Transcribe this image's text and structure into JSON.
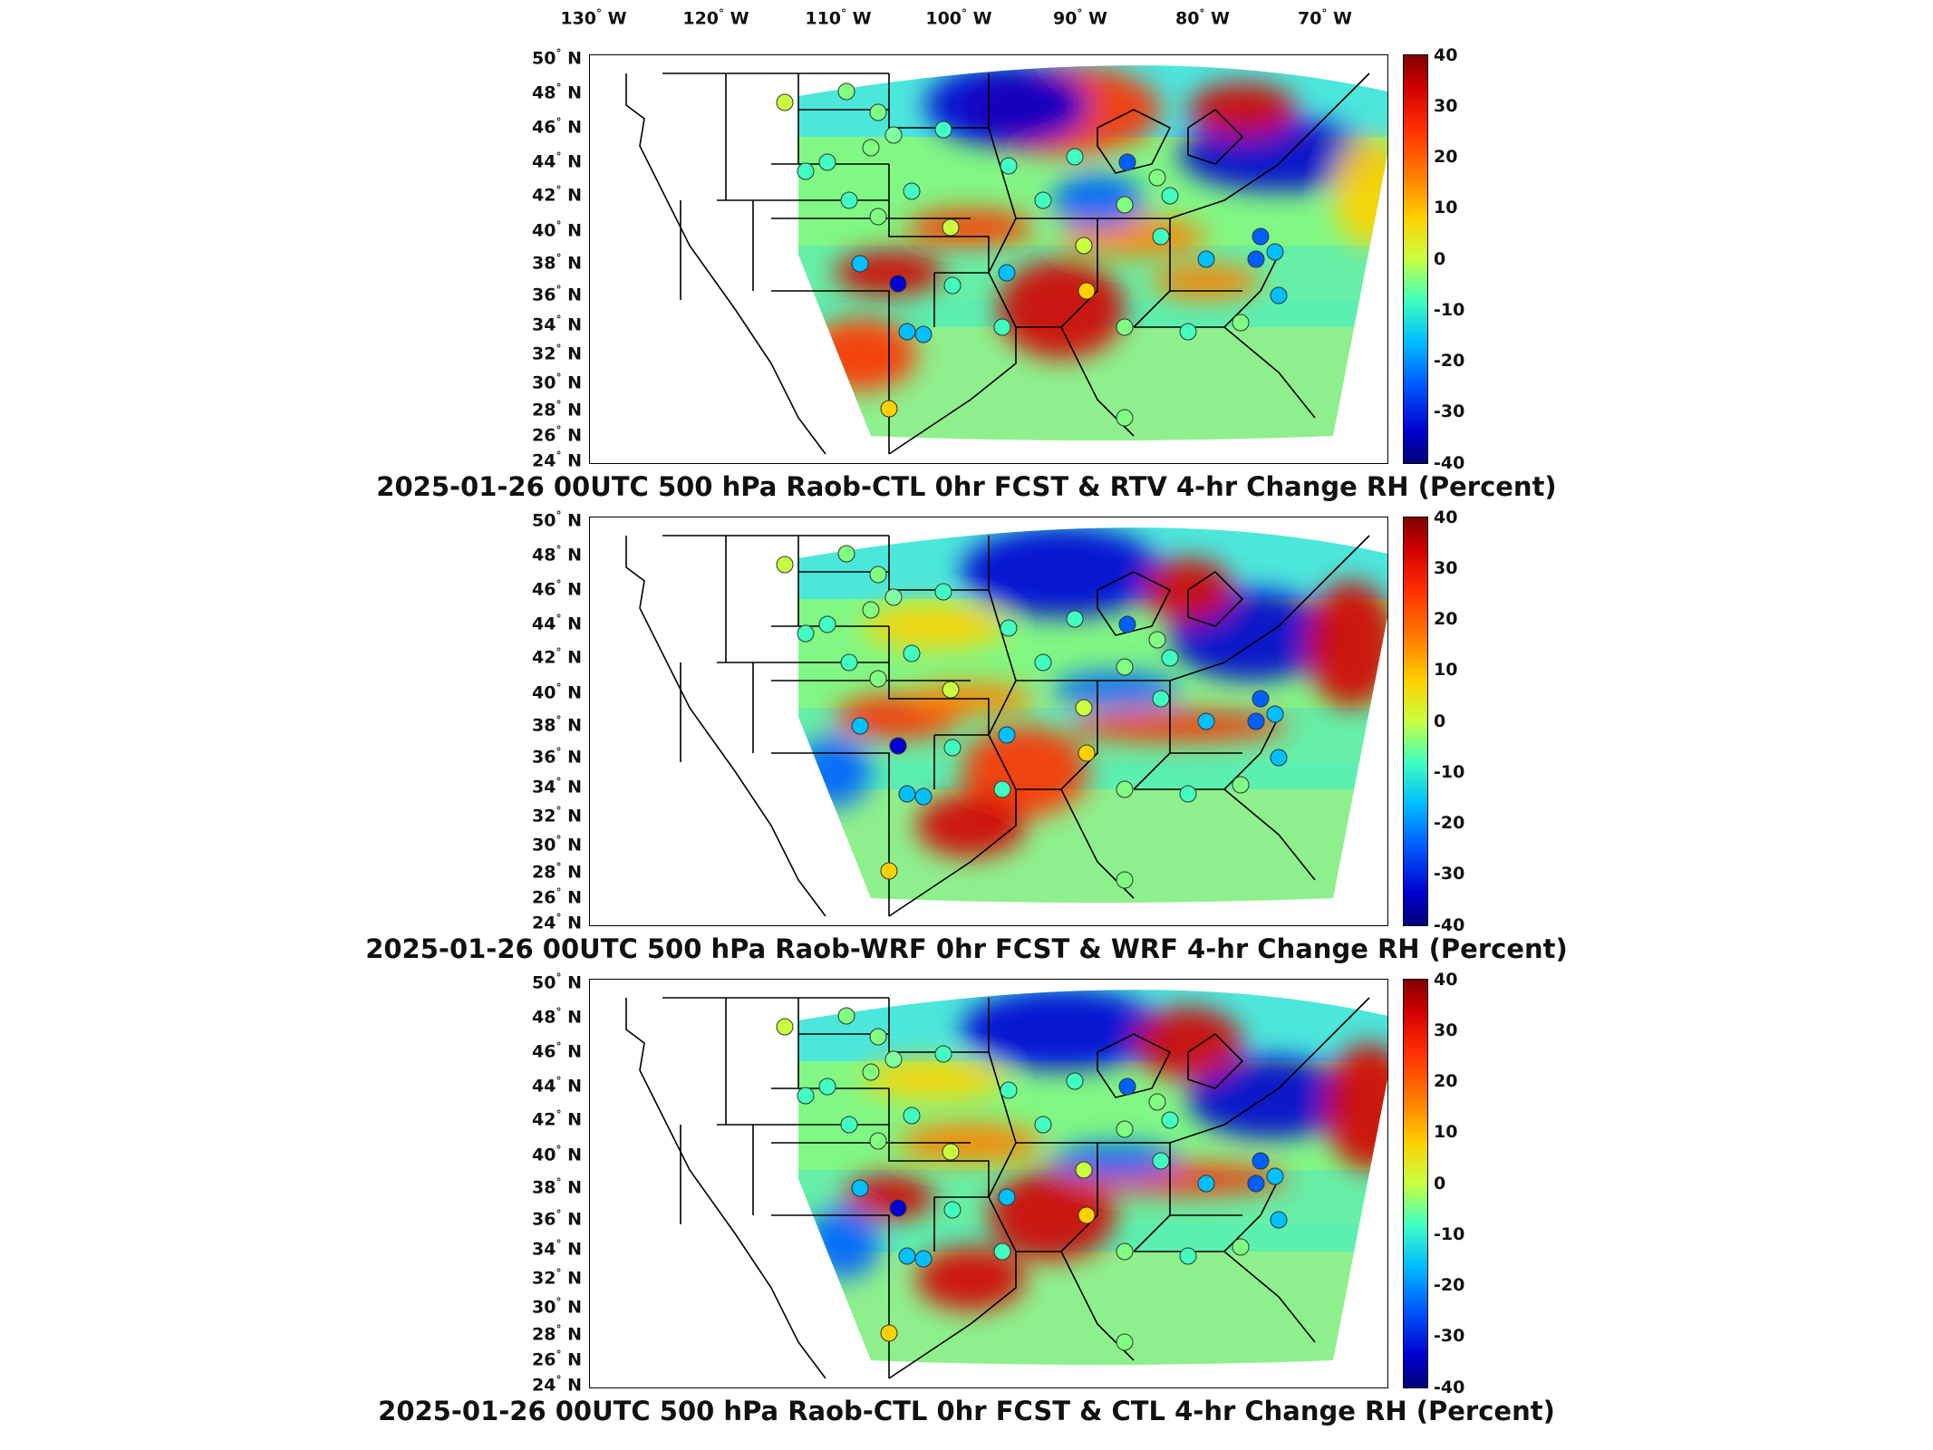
{
  "lon_labels": [
    {
      "deg": "130",
      "hemi": "W"
    },
    {
      "deg": "120",
      "hemi": "W"
    },
    {
      "deg": "110",
      "hemi": "W"
    },
    {
      "deg": "100",
      "hemi": "W"
    },
    {
      "deg": "90",
      "hemi": "W"
    },
    {
      "deg": "80",
      "hemi": "W"
    },
    {
      "deg": "70",
      "hemi": "W"
    }
  ],
  "lat_labels": [
    {
      "deg": "50",
      "hemi": "N"
    },
    {
      "deg": "48",
      "hemi": "N"
    },
    {
      "deg": "46",
      "hemi": "N"
    },
    {
      "deg": "44",
      "hemi": "N"
    },
    {
      "deg": "42",
      "hemi": "N"
    },
    {
      "deg": "40",
      "hemi": "N"
    },
    {
      "deg": "38",
      "hemi": "N"
    },
    {
      "deg": "36",
      "hemi": "N"
    },
    {
      "deg": "34",
      "hemi": "N"
    },
    {
      "deg": "32",
      "hemi": "N"
    },
    {
      "deg": "30",
      "hemi": "N"
    },
    {
      "deg": "28",
      "hemi": "N"
    },
    {
      "deg": "26",
      "hemi": "N"
    },
    {
      "deg": "24",
      "hemi": "N"
    }
  ],
  "colorbar": {
    "ticks": [
      "40",
      "30",
      "20",
      "10",
      "0",
      "-10",
      "-20",
      "-30",
      "-40"
    ],
    "colors": [
      "#800000",
      "#d40000",
      "#ff3000",
      "#ff8000",
      "#ffd000",
      "#c8ff40",
      "#40ffc0",
      "#00c0ff",
      "#0060ff",
      "#0000d0",
      "#00007a"
    ]
  },
  "panels": [
    {
      "title": "2025-01-26 00UTC 500 hPa Raob-CTL 0hr FCST & RTV 4-hr Change RH (Percent)"
    },
    {
      "title": "2025-01-26 00UTC 500 hPa Raob-WRF 0hr FCST & WRF 4-hr Change RH (Percent)"
    },
    {
      "title": "2025-01-26 00UTC 500 hPa Raob-CTL 0hr FCST & CTL 4-hr Change RH (Percent)"
    }
  ]
}
